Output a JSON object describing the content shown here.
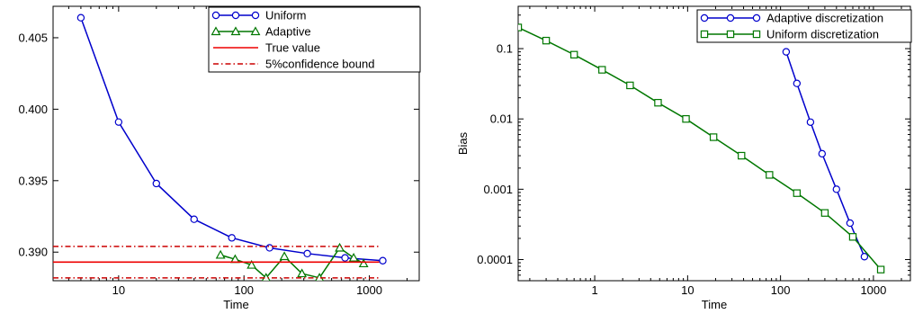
{
  "chart_data": [
    {
      "type": "line",
      "title": "",
      "xlabel": "Time",
      "ylabel": "",
      "xscale": "log",
      "xlim": [
        3,
        2500
      ],
      "ylim": [
        0.388,
        0.4072
      ],
      "xticks": [
        10,
        100,
        1000
      ],
      "xtick_labels": [
        "10",
        "100",
        "1000"
      ],
      "yticks": [
        0.39,
        0.395,
        0.4,
        0.405
      ],
      "ytick_labels": [
        "0.390",
        "0.395",
        "0.400",
        "0.405"
      ],
      "legend_position": "top-right",
      "grid": false,
      "series": [
        {
          "name": "Uniform",
          "color": "#0000cc",
          "marker": "circle",
          "dash": "solid",
          "x": [
            5,
            10,
            20,
            40,
            80,
            160,
            320,
            640,
            1280
          ],
          "y": [
            0.4064,
            0.3991,
            0.3948,
            0.3923,
            0.391,
            0.3903,
            0.3899,
            0.3896,
            0.3894
          ]
        },
        {
          "name": "Adaptive",
          "color": "#007700",
          "marker": "triangle",
          "dash": "solid",
          "x": [
            65,
            85,
            115,
            150,
            210,
            290,
            400,
            580,
            750,
            900
          ],
          "y": [
            0.3898,
            0.3895,
            0.3891,
            0.3882,
            0.3897,
            0.3885,
            0.3882,
            0.3903,
            0.3896,
            0.3892
          ]
        },
        {
          "name": "True value",
          "color": "#ee0000",
          "marker": "none",
          "dash": "solid",
          "x": [
            3,
            1200
          ],
          "y": [
            0.3893,
            0.3893
          ]
        },
        {
          "name": "5%confidence bound",
          "color": "#cc0000",
          "marker": "none",
          "dash": "dashdot",
          "x": [
            3,
            1200
          ],
          "y": [
            0.3904,
            0.3904
          ]
        },
        {
          "name": "",
          "color": "#cc0000",
          "marker": "none",
          "dash": "dashdot",
          "x": [
            3,
            1200
          ],
          "y": [
            0.3882,
            0.3882
          ]
        }
      ]
    },
    {
      "type": "line",
      "title": "",
      "xlabel": "Time",
      "ylabel": "Bias",
      "xscale": "log",
      "yscale": "log",
      "xlim": [
        0.15,
        2500
      ],
      "ylim": [
        5e-05,
        0.4
      ],
      "xticks": [
        1,
        10,
        100,
        1000
      ],
      "xtick_labels": [
        "1",
        "10",
        "100",
        "1000"
      ],
      "yticks": [
        0.0001,
        0.001,
        0.01,
        0.1
      ],
      "ytick_labels": [
        "0.0001",
        "0.001",
        "0.01",
        "0.1"
      ],
      "legend_position": "top-right",
      "grid": false,
      "series": [
        {
          "name": "Adaptive discretization",
          "color": "#0000cc",
          "marker": "circle",
          "dash": "solid",
          "x": [
            115,
            150,
            210,
            280,
            400,
            560,
            800
          ],
          "y": [
            0.09,
            0.032,
            0.009,
            0.0032,
            0.001,
            0.00033,
            0.00011
          ]
        },
        {
          "name": "Uniform discretization",
          "color": "#007700",
          "marker": "square",
          "dash": "solid",
          "x": [
            0.15,
            0.3,
            0.6,
            1.2,
            2.4,
            4.8,
            9.6,
            19,
            38,
            76,
            150,
            300,
            600,
            1200
          ],
          "y": [
            0.2,
            0.13,
            0.082,
            0.05,
            0.03,
            0.017,
            0.01,
            0.0055,
            0.003,
            0.0016,
            0.00088,
            0.00046,
            0.00021,
            7.2e-05
          ]
        }
      ]
    }
  ]
}
